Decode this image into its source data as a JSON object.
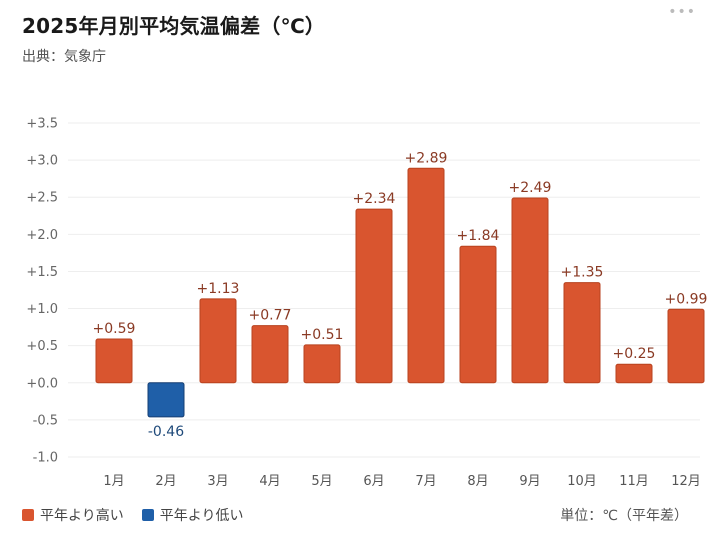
{
  "header": {
    "title": "2025年月別平均気温偏差（℃）",
    "source": "出典：気象庁",
    "menu_icon": "ellipsis-icon"
  },
  "legend": {
    "above_label": "平年より高い",
    "below_label": "平年より低い"
  },
  "unit_label": "単位：℃（平年差）",
  "colors": {
    "above": "#d9552f",
    "below": "#1f5fa8",
    "above_text": "#8a3a24",
    "below_text": "#1f4a7a",
    "grid": "#eeeeee"
  },
  "chart_data": {
    "type": "bar",
    "categories": [
      "1月",
      "2月",
      "3月",
      "4月",
      "5月",
      "6月",
      "7月",
      "8月",
      "9月",
      "10月",
      "11月",
      "12月"
    ],
    "values": [
      0.59,
      -0.46,
      1.13,
      0.77,
      0.51,
      2.34,
      2.89,
      1.84,
      2.49,
      1.35,
      0.25,
      0.99
    ],
    "data_labels": [
      "+0.59",
      "-0.46",
      "+1.13",
      "+0.77",
      "+0.51",
      "+2.34",
      "+2.89",
      "+1.84",
      "+2.49",
      "+1.35",
      "+0.25",
      "+0.99"
    ],
    "yticks": [
      3.5,
      3.0,
      2.5,
      2.0,
      1.5,
      1.0,
      0.5,
      0.0,
      -0.5,
      -1.0
    ],
    "ytick_labels": [
      "+3.5",
      "+3.0",
      "+2.5",
      "+2.0",
      "+1.5",
      "+1.0",
      "+0.5",
      "+0.0",
      "-0.5",
      "-1.0"
    ],
    "ylim": [
      -1.0,
      3.5
    ],
    "grid": true,
    "legend_position": "bottom-left"
  }
}
